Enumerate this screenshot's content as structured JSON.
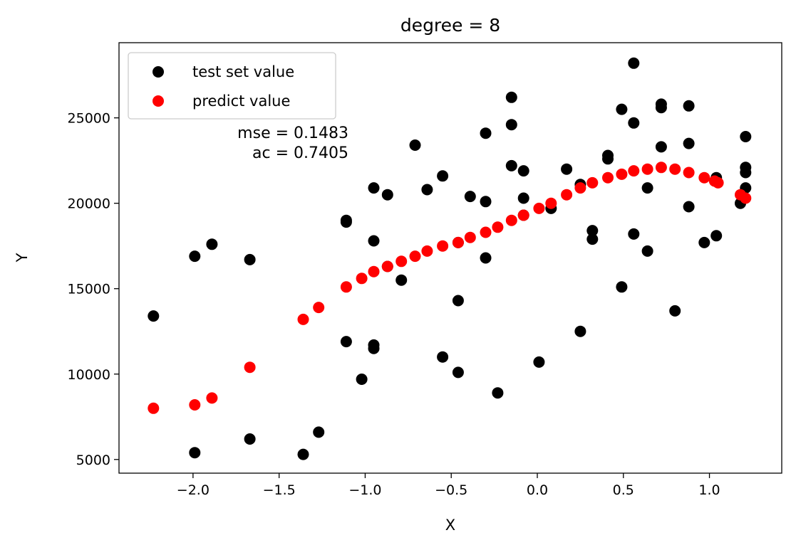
{
  "chart_data": {
    "type": "scatter",
    "title": "degree = 8",
    "xlabel": "X",
    "ylabel": "Y",
    "xlim": [
      -2.43,
      1.42
    ],
    "ylim": [
      4200,
      29400
    ],
    "xticks": [
      {
        "value": -2.0,
        "label": "−2.0"
      },
      {
        "value": -1.5,
        "label": "−1.5"
      },
      {
        "value": -1.0,
        "label": "−1.0"
      },
      {
        "value": -0.5,
        "label": "−0.5"
      },
      {
        "value": 0.0,
        "label": "0.0"
      },
      {
        "value": 0.5,
        "label": "0.5"
      },
      {
        "value": 1.0,
        "label": "1.0"
      }
    ],
    "yticks": [
      {
        "value": 5000,
        "label": "5000"
      },
      {
        "value": 10000,
        "label": "10000"
      },
      {
        "value": 15000,
        "label": "15000"
      },
      {
        "value": 20000,
        "label": "20000"
      },
      {
        "value": 25000,
        "label": "25000"
      }
    ],
    "grid": false,
    "legend_position": "top-left",
    "annotations": [
      "mse = 0.1483",
      "ac = 0.7405"
    ],
    "series": [
      {
        "name": "test set value",
        "color": "#000000",
        "points": [
          [
            -2.23,
            13400
          ],
          [
            -1.99,
            16900
          ],
          [
            -1.89,
            17600
          ],
          [
            -1.67,
            16700
          ],
          [
            -1.99,
            5400
          ],
          [
            -1.67,
            6200
          ],
          [
            -1.36,
            5300
          ],
          [
            -1.27,
            6600
          ],
          [
            -1.11,
            19000
          ],
          [
            -1.11,
            18900
          ],
          [
            -1.11,
            11900
          ],
          [
            -1.02,
            9700
          ],
          [
            -0.95,
            20900
          ],
          [
            -0.95,
            17800
          ],
          [
            -0.95,
            11700
          ],
          [
            -0.95,
            11500
          ],
          [
            -0.87,
            20500
          ],
          [
            -0.87,
            16300
          ],
          [
            -0.79,
            15500
          ],
          [
            -0.71,
            23400
          ],
          [
            -0.64,
            20800
          ],
          [
            -0.55,
            21600
          ],
          [
            -0.55,
            11000
          ],
          [
            -0.46,
            14300
          ],
          [
            -0.46,
            10100
          ],
          [
            -0.46,
            17700
          ],
          [
            -0.39,
            20400
          ],
          [
            -0.3,
            24100
          ],
          [
            -0.3,
            20100
          ],
          [
            -0.3,
            16800
          ],
          [
            -0.23,
            8900
          ],
          [
            -0.15,
            26200
          ],
          [
            -0.15,
            24600
          ],
          [
            -0.15,
            22200
          ],
          [
            -0.08,
            21900
          ],
          [
            -0.08,
            20300
          ],
          [
            -0.08,
            19300
          ],
          [
            0.01,
            10700
          ],
          [
            0.08,
            19700
          ],
          [
            0.17,
            22000
          ],
          [
            0.25,
            21100
          ],
          [
            0.25,
            12500
          ],
          [
            0.32,
            18400
          ],
          [
            0.32,
            17900
          ],
          [
            0.41,
            22800
          ],
          [
            0.41,
            22600
          ],
          [
            0.49,
            25500
          ],
          [
            0.49,
            15100
          ],
          [
            0.56,
            28200
          ],
          [
            0.56,
            24700
          ],
          [
            0.56,
            18200
          ],
          [
            0.64,
            20900
          ],
          [
            0.64,
            17200
          ],
          [
            0.72,
            25800
          ],
          [
            0.72,
            25600
          ],
          [
            0.72,
            23300
          ],
          [
            0.8,
            13700
          ],
          [
            0.88,
            25700
          ],
          [
            0.88,
            23500
          ],
          [
            0.88,
            19800
          ],
          [
            0.97,
            17700
          ],
          [
            1.04,
            21500
          ],
          [
            1.04,
            18100
          ],
          [
            1.18,
            20000
          ],
          [
            1.21,
            23900
          ],
          [
            1.21,
            22100
          ],
          [
            1.21,
            21800
          ],
          [
            1.21,
            20900
          ]
        ]
      },
      {
        "name": "predict value",
        "color": "#ff0000",
        "points": [
          [
            -2.23,
            8000
          ],
          [
            -1.99,
            8200
          ],
          [
            -1.89,
            8600
          ],
          [
            -1.67,
            10400
          ],
          [
            -1.36,
            13200
          ],
          [
            -1.27,
            13900
          ],
          [
            -1.11,
            15100
          ],
          [
            -1.02,
            15600
          ],
          [
            -0.95,
            16000
          ],
          [
            -0.87,
            16300
          ],
          [
            -0.79,
            16600
          ],
          [
            -0.71,
            16900
          ],
          [
            -0.64,
            17200
          ],
          [
            -0.55,
            17500
          ],
          [
            -0.46,
            17700
          ],
          [
            -0.39,
            18000
          ],
          [
            -0.3,
            18300
          ],
          [
            -0.23,
            18600
          ],
          [
            -0.15,
            19000
          ],
          [
            -0.08,
            19300
          ],
          [
            0.01,
            19700
          ],
          [
            0.08,
            20000
          ],
          [
            0.17,
            20500
          ],
          [
            0.25,
            20900
          ],
          [
            0.32,
            21200
          ],
          [
            0.41,
            21500
          ],
          [
            0.49,
            21700
          ],
          [
            0.56,
            21900
          ],
          [
            0.64,
            22000
          ],
          [
            0.72,
            22100
          ],
          [
            0.8,
            22000
          ],
          [
            0.88,
            21800
          ],
          [
            0.97,
            21500
          ],
          [
            1.03,
            21300
          ],
          [
            1.05,
            21200
          ],
          [
            1.18,
            20500
          ],
          [
            1.21,
            20300
          ]
        ]
      }
    ]
  }
}
